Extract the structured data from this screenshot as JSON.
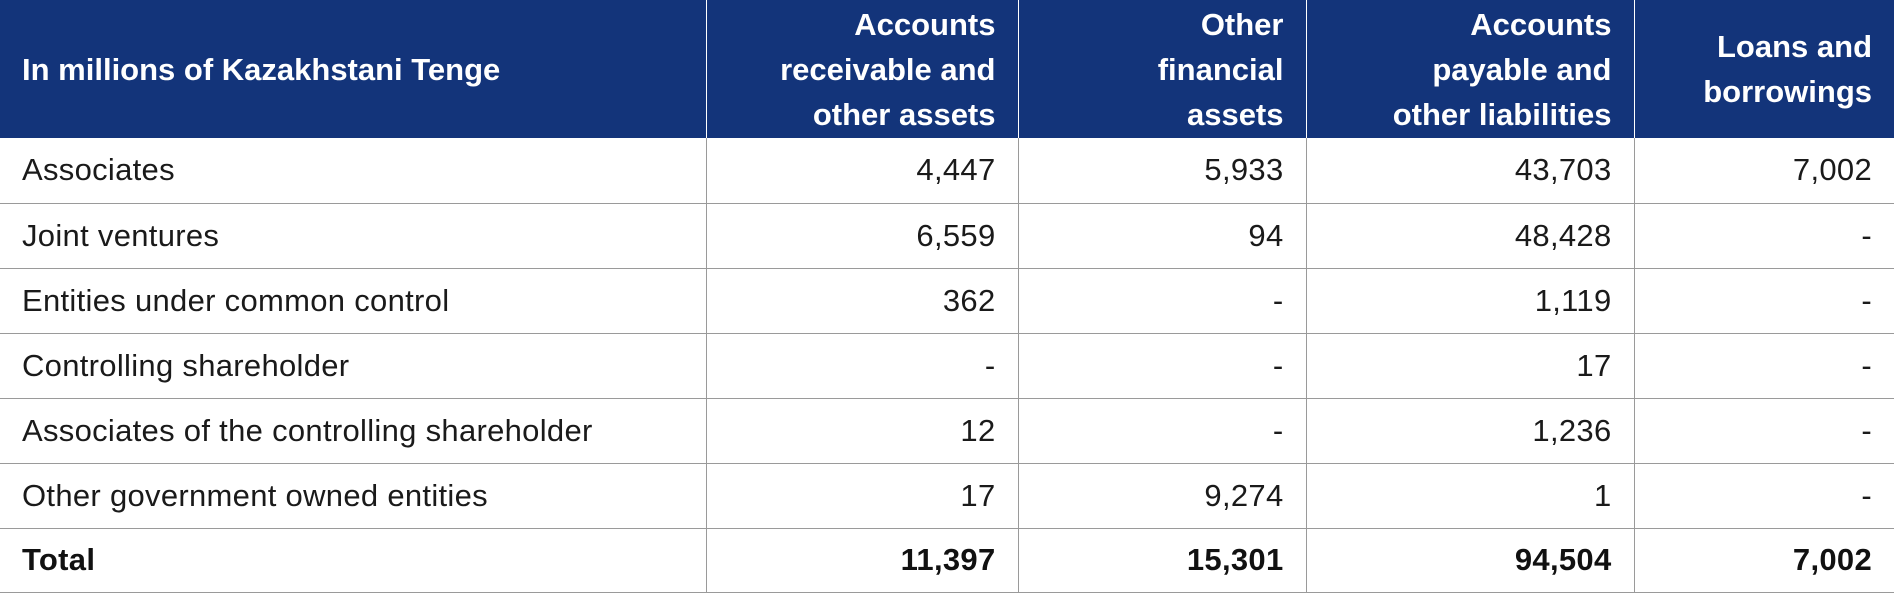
{
  "table": {
    "header": {
      "label": "In millions of Kazakhstani Tenge",
      "columns": [
        [
          "Accounts",
          "receivable and",
          "other assets"
        ],
        [
          "Other",
          "financial",
          "assets"
        ],
        [
          "Accounts",
          "payable and",
          "other liabilities"
        ],
        [
          "Loans and",
          "borrowings"
        ]
      ]
    },
    "rows": [
      {
        "label": "Associates",
        "values": [
          "4,447",
          "5,933",
          "43,703",
          "7,002"
        ]
      },
      {
        "label": "Joint ventures",
        "values": [
          "6,559",
          "94",
          "48,428",
          "-"
        ]
      },
      {
        "label": "Entities under common control",
        "values": [
          "362",
          "-",
          "1,119",
          "-"
        ]
      },
      {
        "label": "Controlling shareholder",
        "values": [
          "-",
          "-",
          "17",
          "-"
        ]
      },
      {
        "label": "Associates of the controlling shareholder",
        "values": [
          "12",
          "-",
          "1,236",
          "-"
        ]
      },
      {
        "label": "Other government owned entities",
        "values": [
          "17",
          "9,274",
          "1",
          "-"
        ]
      }
    ],
    "total": {
      "label": "Total",
      "values": [
        "11,397",
        "15,301",
        "94,504",
        "7,002"
      ]
    },
    "colors": {
      "header_bg": "#13347a",
      "header_text": "#ffffff",
      "grid": "#9a9a9a"
    }
  }
}
